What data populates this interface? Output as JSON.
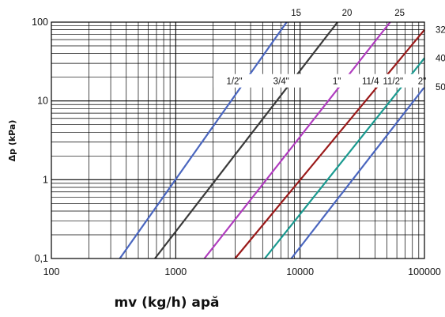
{
  "chart_data": {
    "type": "line",
    "title": "",
    "xlabel": "mv (kg/h) apă",
    "ylabel": "Δp (kPa)",
    "x_scale": "log",
    "y_scale": "log",
    "xlim": [
      100,
      100000
    ],
    "ylim": [
      0.1,
      100
    ],
    "grid": true,
    "x_ticks": [
      "100",
      "1000",
      "10000",
      "100000"
    ],
    "y_ticks": [
      "0,1",
      "1",
      "10",
      "100"
    ],
    "series": [
      {
        "name": "15",
        "inch": "1/2\"",
        "color": "#4a66bf",
        "x": [
          355,
          7800
        ],
        "y": [
          0.1,
          100
        ]
      },
      {
        "name": "20",
        "inch": "3/4\"",
        "color": "#3a3a3a",
        "x": [
          680,
          20000
        ],
        "y": [
          0.1,
          100
        ]
      },
      {
        "name": "25",
        "inch": "1\"",
        "color": "#b03cbf",
        "x": [
          1700,
          53000
        ],
        "y": [
          0.1,
          100
        ]
      },
      {
        "name": "32",
        "inch": "11/4",
        "color": "#9a1a1a",
        "x": [
          3000,
          100000
        ],
        "y": [
          0.1,
          80
        ]
      },
      {
        "name": "40",
        "inch": "11/2\"",
        "color": "#1a9a90",
        "x": [
          5200,
          100000
        ],
        "y": [
          0.1,
          35
        ]
      },
      {
        "name": "50",
        "inch": "2\"",
        "color": "#4a66bf",
        "x": [
          8500,
          100000
        ],
        "y": [
          0.1,
          15
        ]
      }
    ]
  }
}
